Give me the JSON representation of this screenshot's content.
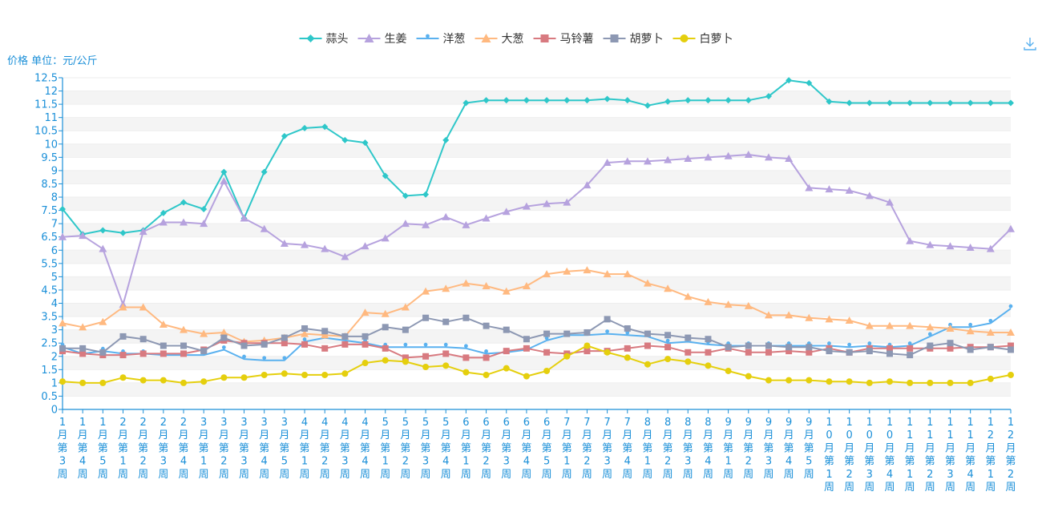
{
  "chart_data": {
    "type": "line",
    "ylabel": "价格 单位：元/公斤",
    "ylim": [
      0,
      12.5
    ],
    "ytick_step": 0.5,
    "grid": true,
    "legend_position": "top-center",
    "categories": [
      "1月第3周",
      "1月第4周",
      "1月第5周",
      "2月第1周",
      "2月第2周",
      "2月第3周",
      "2月第4周",
      "3月第1周",
      "3月第2周",
      "3月第3周",
      "3月第4周",
      "3月第5周",
      "4月第1周",
      "4月第2周",
      "4月第3周",
      "4月第4周",
      "5月第1周",
      "5月第2周",
      "5月第3周",
      "5月第4周",
      "6月第1周",
      "6月第2周",
      "6月第3周",
      "6月第4周",
      "6月第5周",
      "7月第1周",
      "7月第2周",
      "7月第3周",
      "7月第4周",
      "8月第1周",
      "8月第2周",
      "8月第3周",
      "8月第4周",
      "9月第1周",
      "9月第2周",
      "9月第3周",
      "9月第4周",
      "9月第5周",
      "10月第1周",
      "10月第2周",
      "10月第3周",
      "10月第4周",
      "11月第1周",
      "11月第2周",
      "11月第3周",
      "11月第4周",
      "12月第1周",
      "12月第2周"
    ],
    "series": [
      {
        "name": "蒜头",
        "color": "#2ec7c9",
        "symbol": "diamond",
        "values": [
          7.55,
          6.6,
          6.75,
          6.65,
          6.75,
          7.4,
          7.8,
          7.55,
          8.95,
          7.2,
          8.95,
          10.3,
          10.6,
          10.65,
          10.15,
          10.05,
          8.8,
          8.05,
          8.1,
          10.15,
          11.55,
          11.65,
          11.65,
          11.65,
          11.65,
          11.65,
          11.65,
          11.7,
          11.65,
          11.45,
          11.6,
          11.65,
          11.65,
          11.65,
          11.65,
          11.8,
          12.4,
          12.3,
          11.6,
          11.55,
          11.55,
          11.55,
          11.55,
          11.55,
          11.55,
          11.55,
          11.55,
          11.55
        ]
      },
      {
        "name": "生姜",
        "color": "#b6a2de",
        "symbol": "triangle",
        "values": [
          6.5,
          6.55,
          6.05,
          3.95,
          6.7,
          7.05,
          7.05,
          7.0,
          8.6,
          7.2,
          6.8,
          6.25,
          6.2,
          6.05,
          5.75,
          6.15,
          6.45,
          7.0,
          6.95,
          7.25,
          6.95,
          7.2,
          7.45,
          7.65,
          7.75,
          7.8,
          8.45,
          9.3,
          9.35,
          9.35,
          9.4,
          9.45,
          9.5,
          9.55,
          9.6,
          9.5,
          9.45,
          8.35,
          8.3,
          8.25,
          8.05,
          7.8,
          6.35,
          6.2,
          6.15,
          6.1,
          6.05,
          6.8
        ]
      },
      {
        "name": "洋葱",
        "color": "#5ab1ef",
        "symbol": "pin",
        "values": [
          2.35,
          2.1,
          2.2,
          2.1,
          2.1,
          2.05,
          2.05,
          2.05,
          2.25,
          1.9,
          1.85,
          1.85,
          2.55,
          2.7,
          2.6,
          2.5,
          2.35,
          2.35,
          2.35,
          2.35,
          2.3,
          2.1,
          2.15,
          2.25,
          2.6,
          2.8,
          2.8,
          2.85,
          2.8,
          2.75,
          2.5,
          2.55,
          2.45,
          2.4,
          2.4,
          2.4,
          2.4,
          2.4,
          2.4,
          2.35,
          2.4,
          2.35,
          2.4,
          2.75,
          3.1,
          3.1,
          3.25,
          3.8
        ]
      },
      {
        "name": "大葱",
        "color": "#ffb980",
        "symbol": "triangle",
        "values": [
          3.25,
          3.1,
          3.3,
          3.85,
          3.85,
          3.2,
          3.0,
          2.85,
          2.9,
          2.55,
          2.6,
          2.7,
          2.85,
          2.8,
          2.75,
          3.65,
          3.6,
          3.85,
          4.45,
          4.55,
          4.75,
          4.65,
          4.45,
          4.65,
          5.1,
          5.2,
          5.25,
          5.1,
          5.1,
          4.75,
          4.55,
          4.25,
          4.05,
          3.95,
          3.9,
          3.55,
          3.55,
          3.45,
          3.4,
          3.35,
          3.15,
          3.15,
          3.15,
          3.1,
          3.05,
          2.95,
          2.9,
          2.9
        ]
      },
      {
        "name": "马铃薯",
        "color": "#d87a80",
        "symbol": "rect",
        "values": [
          2.2,
          2.1,
          2.05,
          2.05,
          2.1,
          2.1,
          2.1,
          2.25,
          2.6,
          2.5,
          2.5,
          2.5,
          2.45,
          2.3,
          2.45,
          2.45,
          2.3,
          1.95,
          2.0,
          2.1,
          1.95,
          1.95,
          2.2,
          2.3,
          2.15,
          2.1,
          2.2,
          2.2,
          2.3,
          2.4,
          2.35,
          2.15,
          2.15,
          2.3,
          2.15,
          2.15,
          2.2,
          2.15,
          2.3,
          2.15,
          2.3,
          2.3,
          2.3,
          2.3,
          2.3,
          2.35,
          2.35,
          2.4
        ]
      },
      {
        "name": "胡萝卜",
        "color": "#8d98b3",
        "symbol": "rect",
        "values": [
          2.3,
          2.3,
          2.15,
          2.75,
          2.65,
          2.4,
          2.4,
          2.2,
          2.7,
          2.4,
          2.45,
          2.7,
          3.05,
          2.95,
          2.75,
          2.75,
          3.1,
          3.0,
          3.45,
          3.3,
          3.45,
          3.15,
          3.0,
          2.65,
          2.85,
          2.85,
          2.9,
          3.4,
          3.05,
          2.85,
          2.8,
          2.7,
          2.65,
          2.35,
          2.4,
          2.4,
          2.35,
          2.35,
          2.2,
          2.15,
          2.2,
          2.1,
          2.05,
          2.4,
          2.5,
          2.25,
          2.35,
          2.25
        ]
      },
      {
        "name": "白萝卜",
        "color": "#e5cf0d",
        "symbol": "circle",
        "values": [
          1.05,
          1.0,
          1.0,
          1.2,
          1.1,
          1.1,
          1.0,
          1.05,
          1.2,
          1.2,
          1.3,
          1.35,
          1.3,
          1.3,
          1.35,
          1.75,
          1.85,
          1.8,
          1.6,
          1.65,
          1.4,
          1.3,
          1.55,
          1.25,
          1.45,
          2.0,
          2.4,
          2.15,
          1.95,
          1.7,
          1.9,
          1.8,
          1.65,
          1.45,
          1.25,
          1.1,
          1.1,
          1.1,
          1.05,
          1.05,
          1.0,
          1.05,
          1.0,
          1.0,
          1.0,
          1.0,
          1.15,
          1.3
        ]
      }
    ]
  },
  "toolbar": {
    "download_icon": "download-icon",
    "color": "#5ab1ef"
  }
}
